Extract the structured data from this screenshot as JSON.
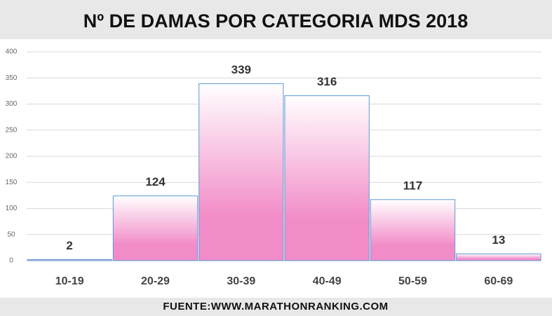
{
  "chart_data": {
    "type": "bar",
    "title": "Nº DE DAMAS POR CATEGORIA MDS 2018",
    "source": "FUENTE:WWW.MARATHONRANKING.COM",
    "categories": [
      "10-19",
      "20-29",
      "30-39",
      "40-49",
      "50-59",
      "60-69"
    ],
    "values": [
      2,
      124,
      339,
      316,
      117,
      13
    ],
    "color": "#f28cc8",
    "edge_color": "#5b9bd5",
    "ylim": [
      0,
      400
    ],
    "yticks": [
      0,
      50,
      100,
      150,
      200,
      250,
      300,
      350,
      400
    ],
    "grid": true
  }
}
